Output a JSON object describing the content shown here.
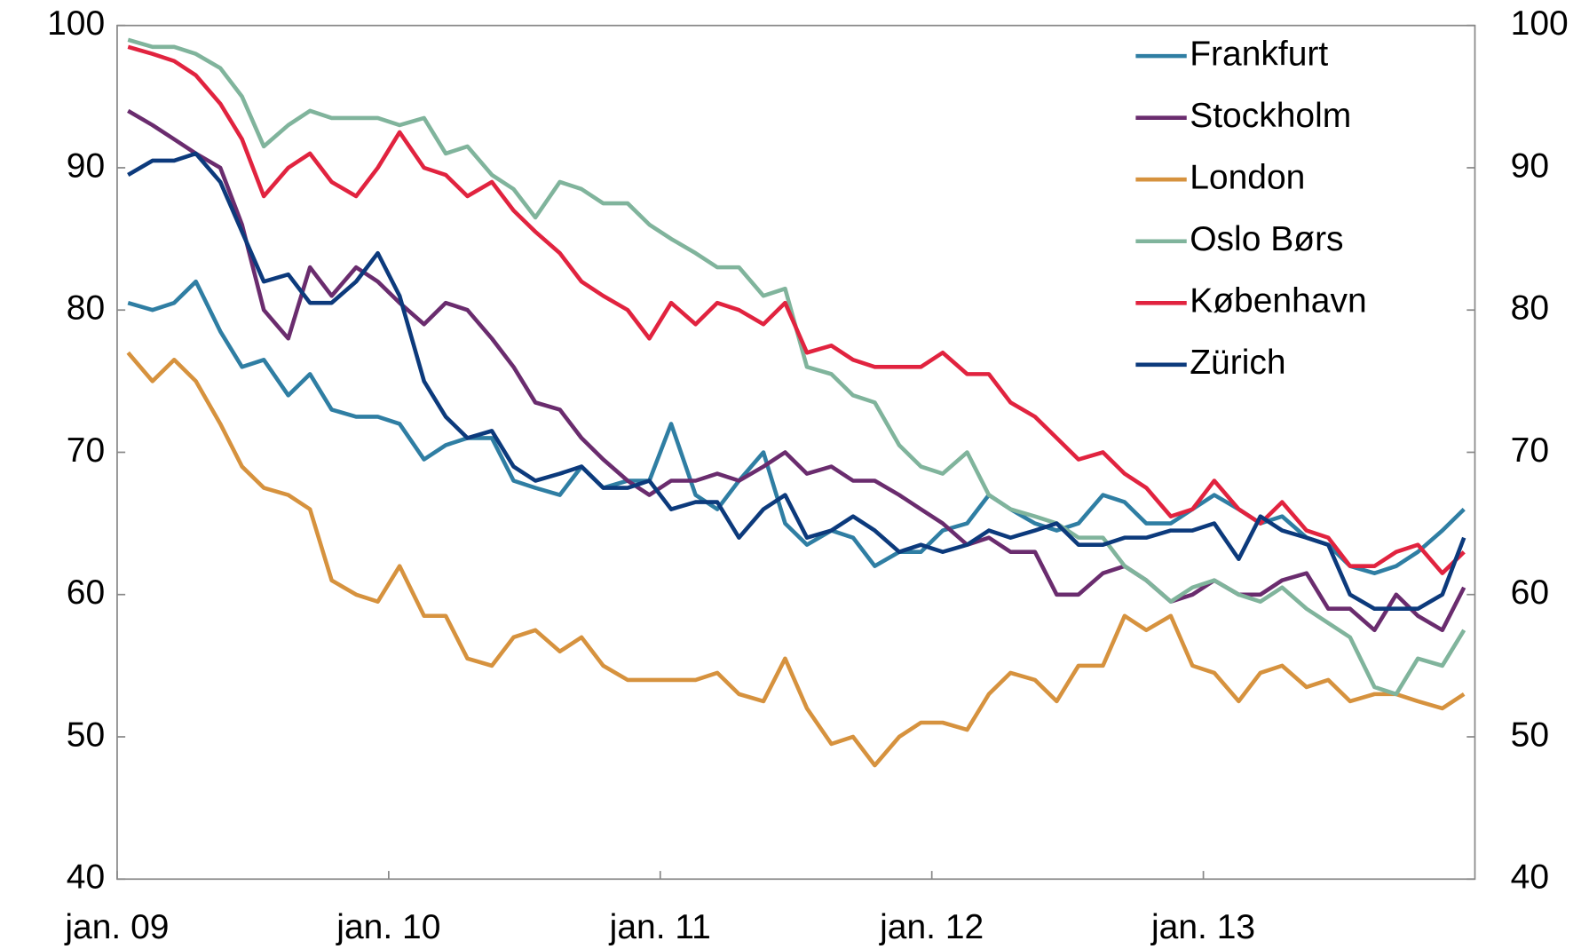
{
  "chart_data": {
    "type": "line",
    "x": [
      2009.04,
      2009.13,
      2009.21,
      2009.29,
      2009.38,
      2009.46,
      2009.54,
      2009.63,
      2009.71,
      2009.79,
      2009.88,
      2009.96,
      2010.04,
      2010.13,
      2010.21,
      2010.29,
      2010.38,
      2010.46,
      2010.54,
      2010.63,
      2010.71,
      2010.79,
      2010.88,
      2010.96,
      2011.04,
      2011.13,
      2011.21,
      2011.29,
      2011.38,
      2011.46,
      2011.54,
      2011.63,
      2011.71,
      2011.79,
      2011.88,
      2011.96,
      2012.04,
      2012.13,
      2012.21,
      2012.29,
      2012.38,
      2012.46,
      2012.54,
      2012.63,
      2012.71,
      2012.79,
      2012.88,
      2012.96,
      2013.04,
      2013.13,
      2013.21,
      2013.29,
      2013.38,
      2013.46,
      2013.54,
      2013.63,
      2013.71,
      2013.79,
      2013.88,
      2013.96
    ],
    "xlim": [
      2009,
      2014
    ],
    "xticks": [
      {
        "value": 2009,
        "label": "jan. 09"
      },
      {
        "value": 2010,
        "label": "jan. 10"
      },
      {
        "value": 2011,
        "label": "jan. 11"
      },
      {
        "value": 2012,
        "label": "jan. 12"
      },
      {
        "value": 2013,
        "label": "jan. 13"
      }
    ],
    "ylim": [
      40,
      100
    ],
    "yticks": [
      40,
      50,
      60,
      70,
      80,
      90,
      100
    ],
    "y2lim": [
      40,
      100
    ],
    "y2ticks": [
      40,
      50,
      60,
      70,
      80,
      90,
      100
    ],
    "legend": "upper right",
    "series": [
      {
        "name": "Frankfurt",
        "color": "#2f7ea3",
        "values": [
          80.5,
          80,
          80.5,
          82,
          78.5,
          76,
          76.5,
          74,
          75.5,
          73,
          72.5,
          72.5,
          72,
          69.5,
          70.5,
          71,
          71,
          68,
          67.5,
          67,
          69,
          67.5,
          68,
          68,
          72,
          67,
          66,
          68,
          70,
          65,
          63.5,
          64.5,
          64,
          62,
          63,
          63,
          64.5,
          65,
          67,
          66,
          65,
          64.5,
          65,
          67,
          66.5,
          65,
          65,
          66,
          67,
          66,
          65,
          65.5,
          64,
          63.5,
          62,
          61.5,
          62,
          63,
          64.5,
          66
        ]
      },
      {
        "name": "Stockholm",
        "color": "#6a2c6e",
        "values": [
          94,
          93,
          92,
          91,
          90,
          86,
          80,
          78,
          83,
          81,
          83,
          82,
          80.5,
          79,
          80.5,
          80,
          78,
          76,
          73.5,
          73,
          71,
          69.5,
          68,
          67,
          68,
          68,
          68.5,
          68,
          69,
          70,
          68.5,
          69,
          68,
          68,
          67,
          66,
          65,
          63.5,
          64,
          63,
          63,
          60,
          60,
          61.5,
          62,
          61,
          59.5,
          60,
          61,
          60,
          60,
          61,
          61.5,
          59,
          59,
          57.5,
          60,
          58.5,
          57.5,
          60.5
        ]
      },
      {
        "name": "London",
        "color": "#d6923e",
        "values": [
          77,
          75,
          76.5,
          75,
          72,
          69,
          67.5,
          67,
          66,
          61,
          60,
          59.5,
          62,
          58.5,
          58.5,
          55.5,
          55,
          57,
          57.5,
          56,
          57,
          55,
          54,
          54,
          54,
          54,
          54.5,
          53,
          52.5,
          55.5,
          52,
          49.5,
          50,
          48,
          50,
          51,
          51,
          50.5,
          53,
          54.5,
          54,
          52.5,
          55,
          55,
          58.5,
          57.5,
          58.5,
          55,
          54.5,
          52.5,
          54.5,
          55,
          53.5,
          54,
          52.5,
          53,
          53,
          52.5,
          52,
          53
        ]
      },
      {
        "name": "Oslo Børs",
        "color": "#80b49c",
        "values": [
          99,
          98.5,
          98.5,
          98,
          97,
          95,
          91.5,
          93,
          94,
          93.5,
          93.5,
          93.5,
          93,
          93.5,
          91,
          91.5,
          89.5,
          88.5,
          86.5,
          89,
          88.5,
          87.5,
          87.5,
          86,
          85,
          84,
          83,
          83,
          81,
          81.5,
          76,
          75.5,
          74,
          73.5,
          70.5,
          69,
          68.5,
          70,
          67,
          66,
          65.5,
          65,
          64,
          64,
          62,
          61,
          59.5,
          60.5,
          61,
          60,
          59.5,
          60.5,
          59,
          58,
          57,
          53.5,
          53,
          55.5,
          55,
          57.5
        ]
      },
      {
        "name": "København",
        "color": "#e1233f",
        "values": [
          98.5,
          98,
          97.5,
          96.5,
          94.5,
          92,
          88,
          90,
          91,
          89,
          88,
          90,
          92.5,
          90,
          89.5,
          88,
          89,
          87,
          85.5,
          84,
          82,
          81,
          80,
          78,
          80.5,
          79,
          80.5,
          80,
          79,
          80.5,
          77,
          77.5,
          76.5,
          76,
          76,
          76,
          77,
          75.5,
          75.5,
          73.5,
          72.5,
          71,
          69.5,
          70,
          68.5,
          67.5,
          65.5,
          66,
          68,
          66,
          65,
          66.5,
          64.5,
          64,
          62,
          62,
          63,
          63.5,
          61.5,
          63
        ]
      },
      {
        "name": "Zürich",
        "color": "#0c3a7c",
        "values": [
          89.5,
          90.5,
          90.5,
          91,
          89,
          85.5,
          82,
          82.5,
          80.5,
          80.5,
          82,
          84,
          81,
          75,
          72.5,
          71,
          71.5,
          69,
          68,
          68.5,
          69,
          67.5,
          67.5,
          68,
          66,
          66.5,
          66.5,
          64,
          66,
          67,
          64,
          64.5,
          65.5,
          64.5,
          63,
          63.5,
          63,
          63.5,
          64.5,
          64,
          64.5,
          65,
          63.5,
          63.5,
          64,
          64,
          64.5,
          64.5,
          65,
          62.5,
          65.5,
          64.5,
          64,
          63.5,
          60,
          59,
          59,
          59,
          60,
          64
        ]
      }
    ]
  }
}
